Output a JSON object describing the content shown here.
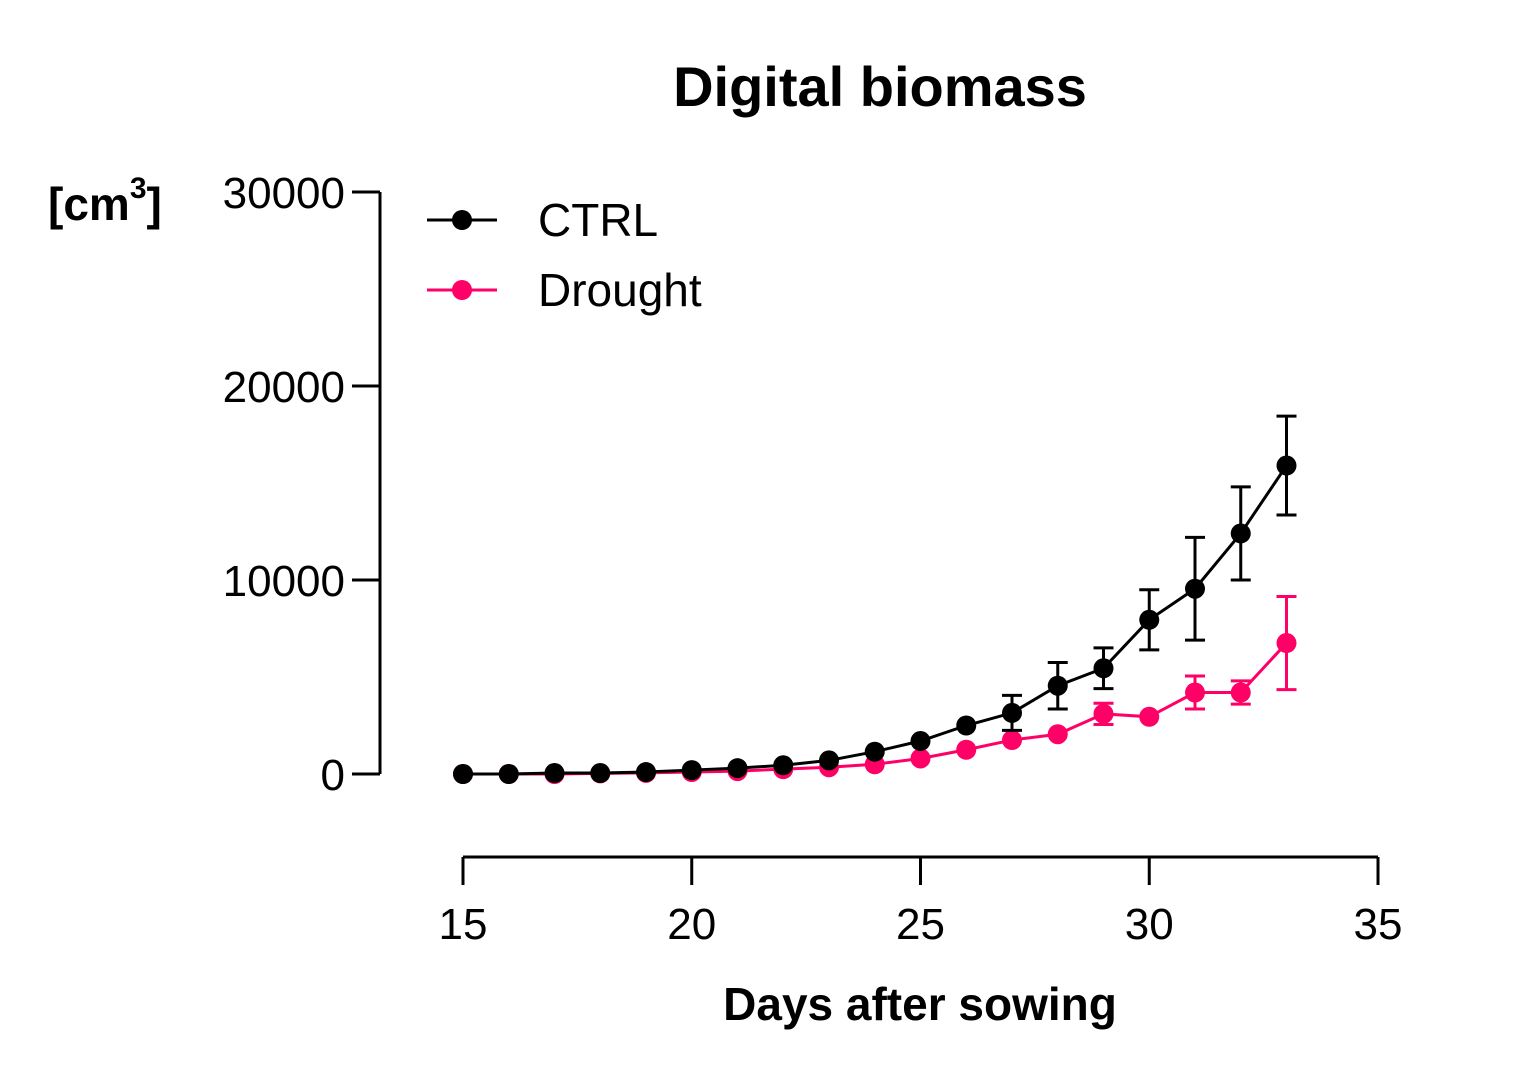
{
  "chart_data": {
    "type": "line",
    "title": "Digital biomass",
    "xlabel": "Days after sowing",
    "ylabel": "[cm3]",
    "ylabel_base": "[cm",
    "ylabel_sup": "3",
    "ylabel_close": "]",
    "xlim": [
      15,
      35
    ],
    "ylim": [
      0,
      30000
    ],
    "xticks": [
      15,
      20,
      25,
      30,
      35
    ],
    "yticks": [
      0,
      10000,
      20000,
      30000
    ],
    "grid": false,
    "legend_position": "top-left",
    "x": [
      15,
      16,
      17,
      18,
      19,
      20,
      21,
      22,
      23,
      24,
      25,
      26,
      27,
      28,
      29,
      30,
      31,
      32,
      33
    ],
    "series": [
      {
        "name": "CTRL",
        "color": "#000000",
        "values": [
          0,
          0,
          50,
          50,
          100,
          200,
          300,
          450,
          700,
          1150,
          1700,
          2500,
          3150,
          4550,
          5450,
          7950,
          9550,
          12400,
          15900
        ],
        "error": [
          0,
          0,
          0,
          0,
          0,
          0,
          0,
          0,
          0,
          0,
          0,
          0,
          900,
          1200,
          1050,
          1550,
          2650,
          2400,
          2550
        ]
      },
      {
        "name": "Drought",
        "color": "#ff0066",
        "values": [
          0,
          0,
          0,
          30,
          60,
          100,
          150,
          250,
          350,
          500,
          800,
          1250,
          1750,
          2050,
          3100,
          2950,
          4200,
          4200,
          6750
        ],
        "error": [
          0,
          0,
          0,
          0,
          0,
          0,
          0,
          0,
          0,
          0,
          0,
          0,
          0,
          0,
          550,
          0,
          850,
          600,
          2400
        ]
      }
    ]
  }
}
